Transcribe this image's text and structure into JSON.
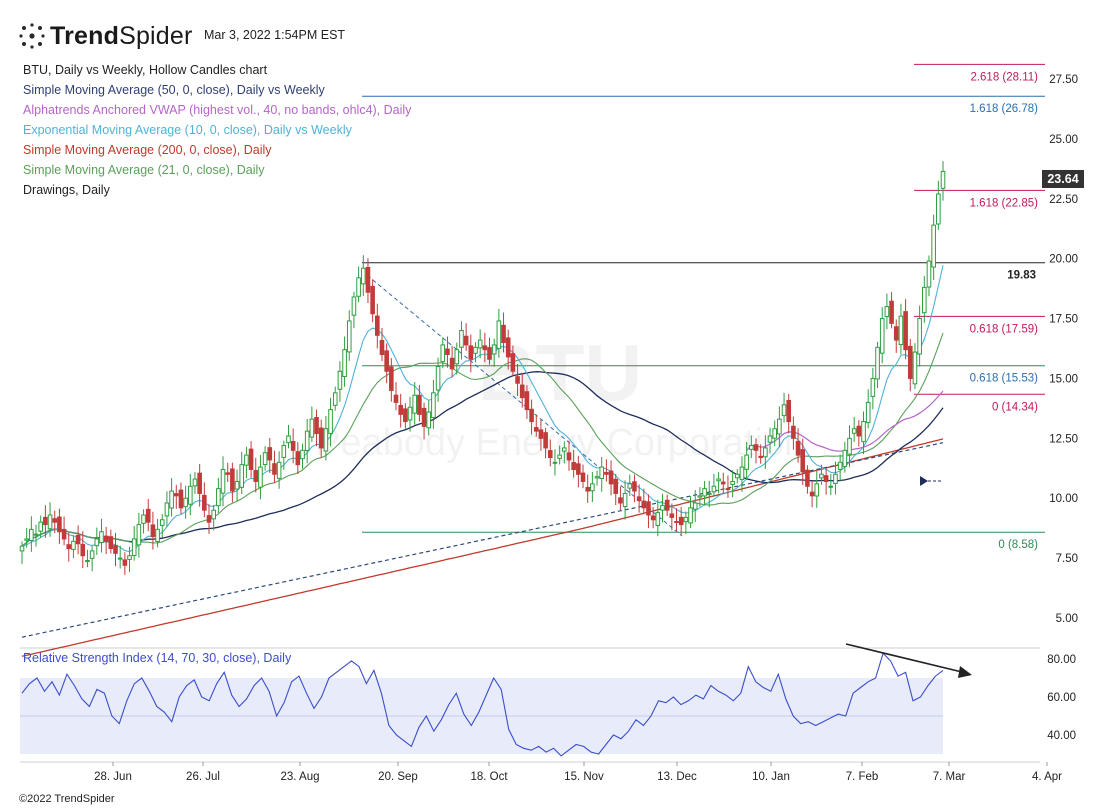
{
  "header": {
    "brand_bold": "Trend",
    "brand_light": "Spider",
    "timestamp": "Mar 3, 2022 1:54PM EST"
  },
  "legend": [
    {
      "text": "BTU, Daily vs Weekly, Hollow Candles chart",
      "color": "#222222"
    },
    {
      "text": "Simple Moving Average (50, 0, close), Daily vs Weekly",
      "color": "#2e3f73"
    },
    {
      "text": "Alphatrends Anchored VWAP (highest vol., 40, no bands, ohlc4), Daily",
      "color": "#b565c9"
    },
    {
      "text": "Exponential Moving Average (10, 0, close), Daily vs Weekly",
      "color": "#4fb3d6"
    },
    {
      "text": "Simple Moving Average (200, 0, close), Daily",
      "color": "#c0392b"
    },
    {
      "text": "Simple Moving Average (21, 0, close), Daily",
      "color": "#5aa05a"
    },
    {
      "text": "Drawings, Daily",
      "color": "#222222"
    }
  ],
  "watermark": {
    "symbol": "BTU",
    "company": "Peabody Energy Corporation"
  },
  "price_badge": "23.64",
  "rsi_label": "Relative Strength Index (14, 70, 30, close), Daily",
  "copyright": "©2022 TrendSpider",
  "colors": {
    "up": "#2e9e3e",
    "down": "#c23b3b",
    "sma50": "#1f2d5a",
    "sma200": "#c0392b",
    "sma21": "#5aa05a",
    "ema10": "#4fb3d6",
    "vwap": "#b565c9",
    "sma50w": "#2e4a7a",
    "fib_red": "#c2185b",
    "fib_blue": "#2a6fb0",
    "fib_green": "#2e8b57",
    "rsi": "#3b4ec9"
  },
  "chart_data": {
    "type": "candlestick",
    "price_axis": {
      "min": 4,
      "max": 29,
      "ticks": [
        "5.00",
        "7.50",
        "10.00",
        "12.50",
        "15.00",
        "17.50",
        "20.00",
        "22.50",
        "25.00",
        "27.50"
      ]
    },
    "x_axis": {
      "ticks": [
        "28. Jun",
        "26. Jul",
        "23. Aug",
        "20. Sep",
        "18. Oct",
        "15. Nov",
        "13. Dec",
        "10. Jan",
        "7. Feb",
        "7. Mar",
        "4. Apr"
      ]
    },
    "fib_levels": [
      {
        "label": "2.618 (28.11)",
        "value": 28.11,
        "color": "fib_red"
      },
      {
        "label": "1.618 (26.78)",
        "value": 26.78,
        "color": "fib_blue"
      },
      {
        "label": "1.618 (22.85)",
        "value": 22.85,
        "color": "fib_red"
      },
      {
        "label": "19.83",
        "value": 19.83,
        "color": "black"
      },
      {
        "label": "0.618 (17.59)",
        "value": 17.59,
        "color": "fib_red"
      },
      {
        "label": "0.618 (15.53)",
        "value": 15.53,
        "color": "fib_blue"
      },
      {
        "label": "0 (14.34)",
        "value": 14.34,
        "color": "fib_red"
      },
      {
        "label": "0 (8.58)",
        "value": 8.58,
        "color": "fib_blue"
      }
    ],
    "last_price": 23.64,
    "close_approx": [
      8.0,
      8.3,
      8.7,
      8.5,
      9.0,
      8.9,
      9.3,
      9.0,
      8.6,
      8.3,
      7.9,
      8.2,
      8.1,
      7.6,
      7.4,
      7.8,
      8.3,
      8.6,
      8.2,
      7.9,
      7.7,
      7.5,
      7.2,
      7.6,
      8.3,
      8.9,
      9.3,
      9.0,
      8.4,
      8.7,
      9.1,
      9.8,
      10.3,
      10.1,
      9.6,
      10.0,
      10.5,
      10.8,
      10.2,
      9.5,
      9.0,
      9.5,
      10.4,
      11.2,
      11.0,
      10.3,
      10.7,
      11.4,
      11.8,
      11.2,
      10.7,
      11.3,
      11.9,
      11.6,
      11.0,
      11.5,
      12.2,
      12.6,
      12.0,
      11.4,
      12.0,
      12.8,
      13.3,
      12.7,
      12.1,
      12.9,
      13.7,
      14.4,
      15.3,
      16.2,
      17.4,
      18.4,
      19.2,
      19.6,
      18.6,
      17.7,
      16.8,
      16.0,
      15.3,
      14.5,
      14.0,
      13.5,
      13.2,
      13.8,
      14.3,
      13.5,
      13.0,
      13.6,
      14.4,
      15.5,
      16.4,
      16.0,
      15.4,
      16.2,
      17.0,
      16.4,
      15.8,
      16.3,
      16.6,
      16.2,
      15.8,
      16.4,
      17.4,
      16.5,
      15.9,
      15.3,
      14.8,
      14.2,
      13.7,
      13.2,
      12.8,
      12.5,
      12.1,
      11.7,
      11.5,
      11.8,
      12.1,
      11.6,
      11.2,
      11.0,
      10.7,
      10.3,
      10.6,
      10.9,
      11.3,
      11.0,
      10.6,
      10.2,
      9.8,
      10.2,
      10.6,
      10.3,
      9.9,
      9.6,
      9.3,
      9.1,
      9.4,
      9.7,
      9.5,
      9.2,
      9.0,
      8.9,
      9.2,
      9.6,
      9.8,
      10.1,
      10.4,
      10.2,
      10.5,
      10.8,
      10.6,
      10.4,
      10.7,
      11.0,
      11.3,
      11.8,
      12.2,
      12.0,
      11.7,
      12.1,
      12.6,
      12.9,
      13.3,
      13.9,
      13.2,
      12.5,
      11.8,
      11.1,
      10.5,
      10.1,
      10.6,
      11.0,
      10.7,
      10.5,
      11.0,
      11.5,
      12.0,
      12.5,
      12.9,
      12.6,
      13.2,
      14.0,
      15.0,
      16.3,
      17.5,
      18.0,
      17.3,
      16.6,
      17.6,
      16.2,
      15.0,
      16.1,
      17.5,
      18.8,
      19.9,
      21.4,
      22.7,
      23.64
    ],
    "rsi": {
      "range": [
        30,
        85
      ],
      "ticks": [
        "40.00",
        "60.00",
        "80.00"
      ],
      "band": [
        30,
        70
      ],
      "values_approx": [
        62,
        67,
        70,
        63,
        68,
        61,
        72,
        66,
        59,
        55,
        64,
        62,
        50,
        46,
        58,
        67,
        70,
        63,
        55,
        52,
        47,
        60,
        66,
        69,
        60,
        58,
        67,
        73,
        61,
        55,
        59,
        66,
        70,
        63,
        50,
        57,
        68,
        71,
        62,
        54,
        60,
        70,
        73,
        76,
        79,
        76,
        67,
        74,
        62,
        45,
        40,
        37,
        34,
        44,
        50,
        42,
        48,
        56,
        62,
        51,
        45,
        52,
        61,
        70,
        64,
        43,
        35,
        33,
        32,
        34,
        31,
        33,
        29,
        32,
        35,
        34,
        31,
        30,
        35,
        40,
        38,
        42,
        48,
        45,
        50,
        58,
        57,
        60,
        56,
        58,
        61,
        59,
        66,
        63,
        61,
        58,
        62,
        76,
        68,
        65,
        63,
        72,
        59,
        50,
        46,
        47,
        45,
        47,
        49,
        51,
        50,
        62,
        65,
        68,
        70,
        83,
        79,
        71,
        73,
        58,
        60,
        66,
        71,
        74
      ]
    }
  }
}
